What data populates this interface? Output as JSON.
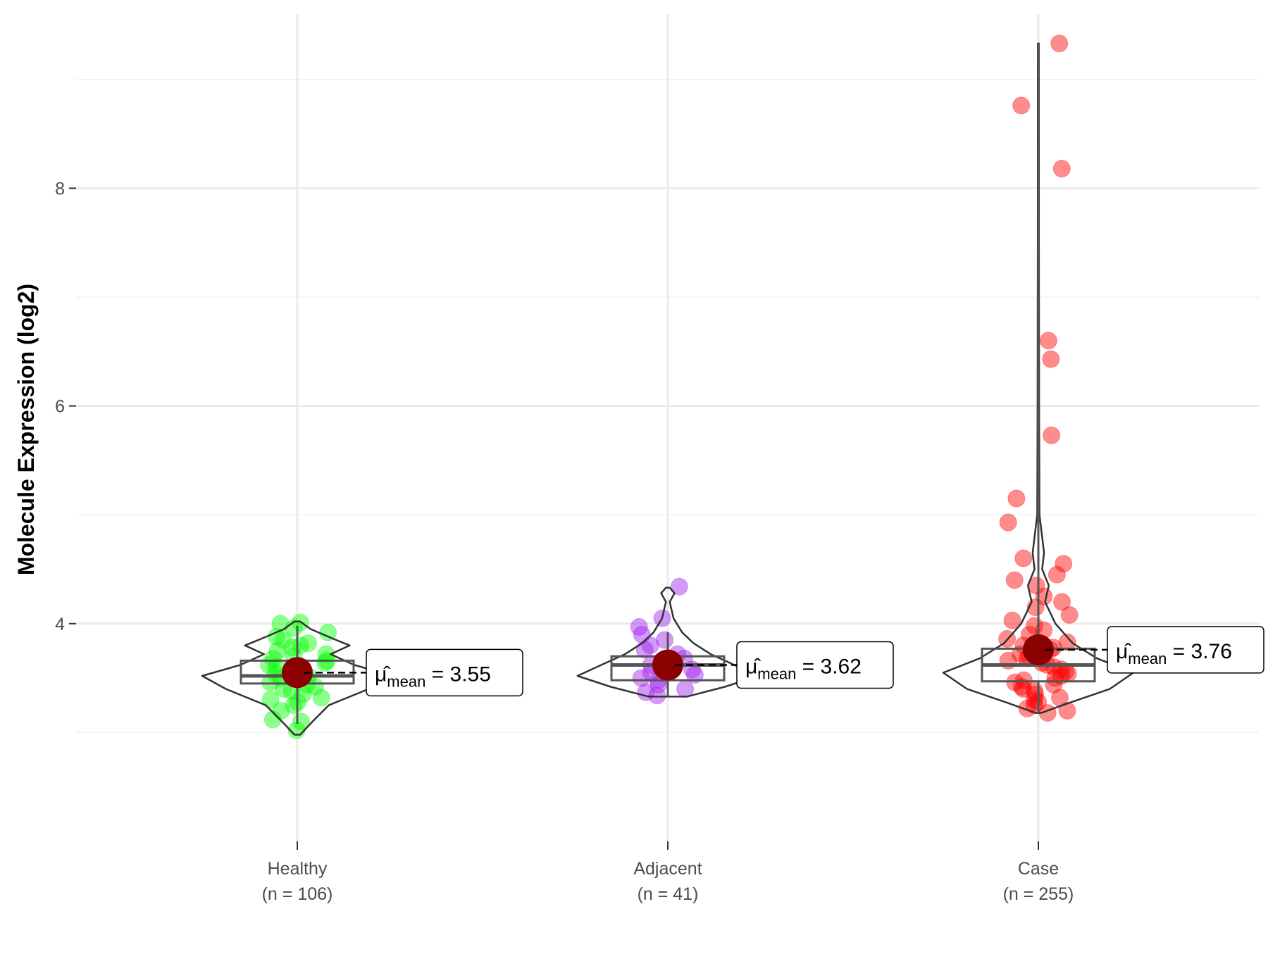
{
  "chart_data": {
    "type": "violin",
    "ylabel": "Molecule Expression (log2)",
    "xlabel": "",
    "ylim": [
      2.0,
      9.6
    ],
    "yticks": [
      4,
      6,
      8
    ],
    "grid": true,
    "colors": {
      "mean_point": "#8b0000",
      "outline": "#333333",
      "grid": "#ebebeb"
    },
    "groups": [
      {
        "name": "Healthy",
        "n_label": "(n = 106)",
        "color": "#00ff00",
        "mean": 3.55,
        "mean_label": "3.55",
        "box": {
          "q1": 3.45,
          "median": 3.52,
          "q3": 3.66,
          "whisker_low": 3.08,
          "whisker_high": 3.98
        },
        "violin_range": [
          2.98,
          4.02
        ],
        "violin_density": [
          [
            2.98,
            0.03
          ],
          [
            3.1,
            0.16
          ],
          [
            3.25,
            0.33
          ],
          [
            3.4,
            0.75
          ],
          [
            3.52,
            1.0
          ],
          [
            3.62,
            0.6
          ],
          [
            3.72,
            0.35
          ],
          [
            3.8,
            0.55
          ],
          [
            3.86,
            0.38
          ],
          [
            3.95,
            0.14
          ],
          [
            4.02,
            0.03
          ]
        ],
        "points": [
          3.02,
          3.1,
          3.12,
          3.2,
          3.25,
          3.28,
          3.3,
          3.32,
          3.35,
          3.38,
          3.4,
          3.42,
          3.44,
          3.46,
          3.48,
          3.5,
          3.52,
          3.54,
          3.56,
          3.58,
          3.6,
          3.62,
          3.64,
          3.66,
          3.68,
          3.7,
          3.72,
          3.75,
          3.78,
          3.8,
          3.82,
          3.85,
          3.88,
          3.92,
          3.96,
          4.0,
          4.01
        ]
      },
      {
        "name": "Adjacent",
        "n_label": "(n = 41)",
        "color": "#a020f0",
        "mean": 3.62,
        "mean_label": "3.62",
        "box": {
          "q1": 3.48,
          "median": 3.62,
          "q3": 3.7,
          "whisker_low": 3.33,
          "whisker_high": 3.92
        },
        "violin_range": [
          3.33,
          4.33
        ],
        "violin_density": [
          [
            3.33,
            0.2
          ],
          [
            3.42,
            0.6
          ],
          [
            3.52,
            0.95
          ],
          [
            3.62,
            0.7
          ],
          [
            3.72,
            0.45
          ],
          [
            3.82,
            0.27
          ],
          [
            3.92,
            0.15
          ],
          [
            4.05,
            0.06
          ],
          [
            4.2,
            0.02
          ],
          [
            4.28,
            0.07
          ],
          [
            4.33,
            0.02
          ]
        ],
        "points": [
          3.34,
          3.37,
          3.4,
          3.44,
          3.48,
          3.5,
          3.53,
          3.55,
          3.58,
          3.6,
          3.62,
          3.64,
          3.66,
          3.68,
          3.72,
          3.76,
          3.8,
          3.85,
          3.9,
          3.97,
          4.05,
          4.34
        ]
      },
      {
        "name": "Case",
        "n_label": "(n = 255)",
        "color": "#ff0000",
        "mean": 3.76,
        "mean_label": "3.76",
        "box": {
          "q1": 3.47,
          "median": 3.62,
          "q3": 3.77,
          "whisker_low": 3.18,
          "whisker_high": 9.33
        },
        "violin_range": [
          3.18,
          9.33
        ],
        "violin_density": [
          [
            3.18,
            0.03
          ],
          [
            3.28,
            0.35
          ],
          [
            3.4,
            0.75
          ],
          [
            3.55,
            1.0
          ],
          [
            3.68,
            0.62
          ],
          [
            3.82,
            0.36
          ],
          [
            4.0,
            0.18
          ],
          [
            4.2,
            0.07
          ],
          [
            4.35,
            0.11
          ],
          [
            4.5,
            0.04
          ],
          [
            4.65,
            0.06
          ],
          [
            5.0,
            0.012
          ],
          [
            6.0,
            0.008
          ],
          [
            7.5,
            0.006
          ],
          [
            9.33,
            0.005
          ]
        ],
        "points": [
          3.18,
          3.2,
          3.22,
          3.25,
          3.28,
          3.3,
          3.32,
          3.35,
          3.38,
          3.4,
          3.42,
          3.44,
          3.46,
          3.48,
          3.5,
          3.52,
          3.54,
          3.56,
          3.58,
          3.6,
          3.62,
          3.64,
          3.66,
          3.68,
          3.7,
          3.72,
          3.74,
          3.76,
          3.78,
          3.8,
          3.83,
          3.86,
          3.9,
          3.94,
          3.98,
          4.03,
          4.08,
          4.15,
          4.2,
          4.25,
          4.35,
          4.4,
          4.45,
          4.55,
          4.6,
          4.93,
          5.15,
          5.73,
          6.43,
          6.6,
          8.18,
          8.76,
          9.33
        ]
      }
    ]
  }
}
